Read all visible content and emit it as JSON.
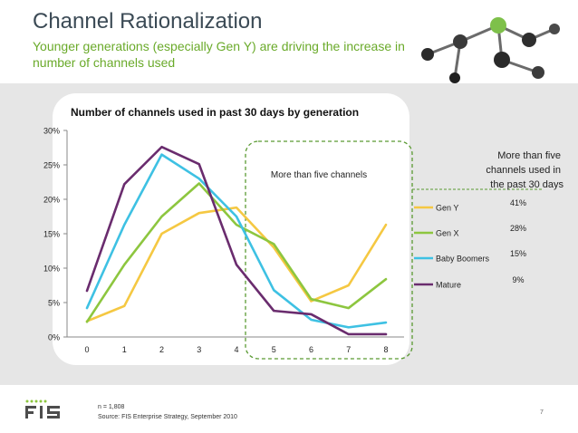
{
  "slide": {
    "title": "Channel Rationalization",
    "subtitle": "Younger generations (especially Gen Y) are driving the increase in number of channels used",
    "note_n": "n = 1,808",
    "source": "Source: FIS Enterprise Strategy, September 2010",
    "page_number": "7",
    "logo_text": "FIS"
  },
  "colors": {
    "title": "#3b4a55",
    "subtitle": "#6aaa2a",
    "band": "#e6e6e6",
    "highlight_border": "#5a9a32"
  },
  "chart_data": {
    "type": "line",
    "title": "Number of channels used in past 30 days by generation",
    "x": [
      0,
      1,
      2,
      3,
      4,
      5,
      6,
      7,
      8
    ],
    "x_tick_labels": [
      "0",
      "1",
      "2",
      "3",
      "4",
      "5",
      "6",
      "7",
      "8"
    ],
    "y_tick_labels": [
      "0%",
      "5%",
      "10%",
      "15%",
      "20%",
      "25%",
      "30%"
    ],
    "ylim": [
      0,
      30
    ],
    "y_unit": "%",
    "grid": false,
    "series": [
      {
        "name": "Gen Y",
        "color": "#f5c842",
        "values": [
          2.3,
          4.5,
          15.0,
          18.0,
          18.8,
          13.0,
          5.2,
          7.5,
          16.3
        ],
        "legend_value": "41%"
      },
      {
        "name": "Gen X",
        "color": "#8dc63f",
        "values": [
          2.2,
          10.5,
          17.5,
          22.3,
          16.3,
          13.5,
          5.5,
          4.2,
          8.4
        ],
        "legend_value": "28%"
      },
      {
        "name": "Baby Boomers",
        "color": "#3ec1e3",
        "values": [
          4.2,
          16.3,
          26.5,
          23.0,
          17.5,
          6.8,
          2.5,
          1.4,
          2.1
        ],
        "legend_value": "15%"
      },
      {
        "name": "Mature",
        "color": "#6a2c6e",
        "values": [
          6.7,
          22.2,
          27.6,
          25.1,
          10.5,
          3.8,
          3.3,
          0.4,
          0.4
        ],
        "legend_value": "9%"
      }
    ],
    "highlight": {
      "label": "More than five channels",
      "x_range": [
        4.5,
        8
      ]
    },
    "legend_header": "More than five channels used in the past 30 days",
    "legend_position": "right"
  }
}
